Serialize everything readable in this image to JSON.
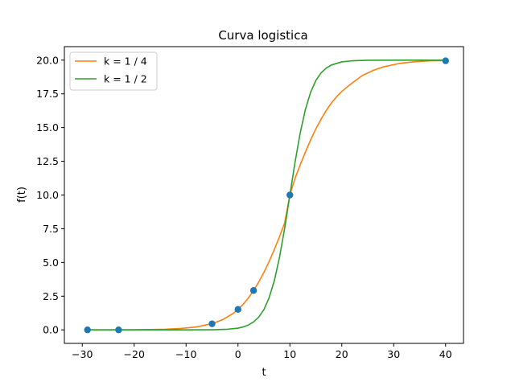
{
  "chart_data": {
    "type": "line",
    "title": "Curva logistica",
    "xlabel": "t",
    "ylabel": "f(t)",
    "xlim": [
      -33.45,
      43.45
    ],
    "ylim": [
      -1.0,
      21.0
    ],
    "xticks": [
      -30,
      -20,
      -10,
      0,
      10,
      20,
      30,
      40
    ],
    "xtick_labels": [
      "−30",
      "−20",
      "−10",
      "0",
      "10",
      "20",
      "30",
      "40"
    ],
    "yticks": [
      0.0,
      2.5,
      5.0,
      7.5,
      10.0,
      12.5,
      15.0,
      17.5,
      20.0
    ],
    "ytick_labels": [
      "0.0",
      "2.5",
      "5.0",
      "7.5",
      "10.0",
      "12.5",
      "15.0",
      "17.5",
      "20.0"
    ],
    "grid": false,
    "legend_position": "upper-left",
    "series": [
      {
        "name": "k = 1 / 4",
        "color": "#ff7f0e",
        "kind": "line",
        "x": [
          -29.0,
          -26.0,
          -23.0,
          -20.0,
          -17.0,
          -14.0,
          -11.0,
          -8.0,
          -5.0,
          -3.0,
          -1.0,
          0.0,
          1.0,
          2.0,
          3.0,
          4.0,
          5.0,
          6.0,
          7.0,
          8.0,
          9.0,
          10.0,
          11.0,
          12.0,
          13.0,
          14.0,
          15.0,
          16.0,
          17.0,
          18.0,
          19.0,
          20.0,
          22.0,
          24.0,
          26.0,
          28.0,
          31.0,
          34.0,
          37.0,
          40.0
        ],
        "y": [
          0.0012,
          0.0025,
          0.0052,
          0.011,
          0.023,
          0.049,
          0.104,
          0.22,
          0.46,
          0.75,
          1.2,
          1.52,
          1.9,
          2.37,
          2.92,
          3.55,
          4.27,
          5.07,
          5.96,
          6.91,
          7.94,
          10.0,
          11.24,
          12.25,
          13.2,
          14.09,
          14.9,
          15.62,
          16.27,
          16.82,
          17.29,
          17.68,
          18.31,
          18.87,
          19.23,
          19.5,
          19.75,
          19.88,
          19.95,
          19.97
        ]
      },
      {
        "name": "k = 1 / 2",
        "color": "#2ca02c",
        "kind": "line",
        "x": [
          -29.0,
          -20.0,
          -15.0,
          -10.0,
          -5.0,
          -2.0,
          0.0,
          1.0,
          2.0,
          3.0,
          4.0,
          5.0,
          6.0,
          7.0,
          8.0,
          9.0,
          10.0,
          11.0,
          12.0,
          13.0,
          14.0,
          15.0,
          16.0,
          17.0,
          18.0,
          20.0,
          22.0,
          25.0,
          30.0,
          40.0
        ],
        "y": [
          0.0,
          0.0,
          0.001,
          0.001,
          0.011,
          0.05,
          0.13,
          0.22,
          0.36,
          0.59,
          0.95,
          1.51,
          2.38,
          3.64,
          5.38,
          7.55,
          10.0,
          12.45,
          14.62,
          16.36,
          17.62,
          18.49,
          19.05,
          19.41,
          19.64,
          19.87,
          19.95,
          19.99,
          20.0,
          20.0
        ]
      },
      {
        "name": "",
        "color": "#1f77b4",
        "kind": "scatter",
        "x": [
          -29.0,
          -23.0,
          -5.0,
          0.0,
          3.0,
          10.0,
          40.0
        ],
        "y": [
          0.0,
          0.0,
          0.45,
          1.52,
          2.92,
          10.0,
          19.95
        ]
      }
    ]
  }
}
